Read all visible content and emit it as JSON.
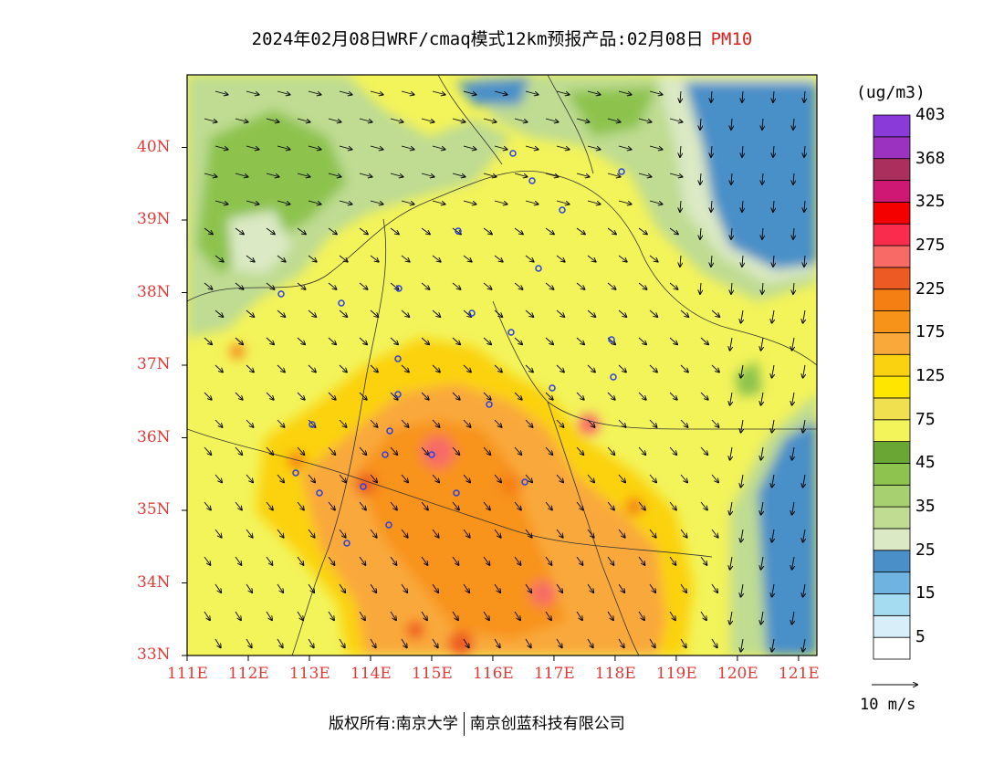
{
  "title": {
    "main": "2024年02月08日WRF/cmaq模式12km预报产品:02月08日",
    "pollutant": "PM10"
  },
  "map": {
    "lat_labels": [
      "40N",
      "39N",
      "38N",
      "37N",
      "36N",
      "35N",
      "34N",
      "33N"
    ],
    "lon_labels": [
      "111E",
      "112E",
      "113E",
      "114E",
      "115E",
      "116E",
      "117E",
      "118E",
      "119E",
      "120E",
      "121E"
    ],
    "extent": {
      "lon_min": 111,
      "lon_max": 121.3,
      "lat_min": 33,
      "lat_max": 41
    }
  },
  "colorbar": {
    "unit": "(ug/m3)",
    "colors": [
      "#ffffff",
      "#d8eef8",
      "#a6dcf2",
      "#6fb3e0",
      "#4a8fc8",
      "#dbe9c4",
      "#bfdc92",
      "#a7d070",
      "#8dc34e",
      "#6aa634",
      "#f3f35a",
      "#f0e050",
      "#ffe600",
      "#fbd210",
      "#f9a93a",
      "#f8931a",
      "#f57f12",
      "#ee5a24",
      "#f86a66",
      "#fa2c4e",
      "#f40000",
      "#cf1873",
      "#aa2f5d",
      "#9b32c0",
      "#8a3ad8"
    ],
    "labels": [
      "5",
      "15",
      "25",
      "35",
      "45",
      "75",
      "125",
      "175",
      "225",
      "275",
      "325",
      "368",
      "403"
    ]
  },
  "wind_reference": {
    "label": "10 m/s"
  },
  "footer": {
    "left": "版权所有:南京大学",
    "right": "南京创蓝科技有限公司"
  }
}
